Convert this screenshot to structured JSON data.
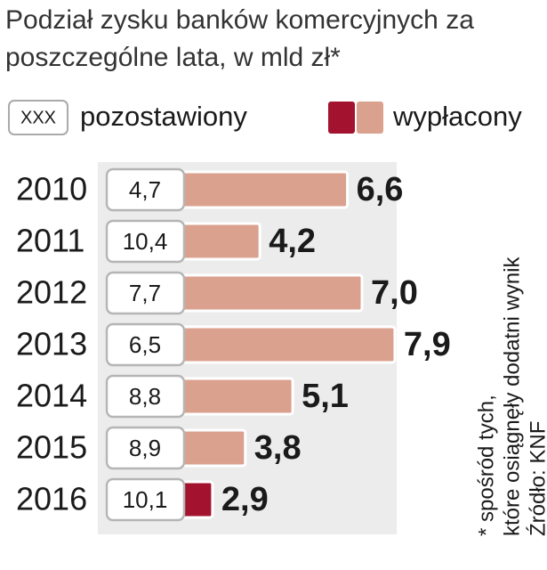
{
  "chart_data": {
    "type": "bar",
    "title": "Podział zysku banków komercyjnych za poszczególne lata, w mld zł*",
    "categories": [
      "2010",
      "2011",
      "2012",
      "2013",
      "2014",
      "2015",
      "2016"
    ],
    "legend_box_text": "XXX",
    "series": [
      {
        "name": "pozostawiony",
        "color": "#ffffff",
        "values": [
          4.7,
          10.4,
          7.7,
          6.5,
          8.8,
          8.9,
          10.1
        ],
        "value_labels": [
          "4,7",
          "10,4",
          "7,7",
          "6,5",
          "8,8",
          "8,9",
          "10,1"
        ]
      },
      {
        "name": "wypłacony",
        "color": "#dba18f",
        "colors": [
          "#dba18f",
          "#dba18f",
          "#dba18f",
          "#dba18f",
          "#dba18f",
          "#dba18f",
          "#a3132f"
        ],
        "values": [
          6.6,
          4.2,
          7.0,
          7.9,
          5.1,
          3.8,
          2.9
        ],
        "value_labels": [
          "6,6",
          "4,2",
          "7,0",
          "7,9",
          "5,1",
          "3,8",
          "2,9"
        ]
      }
    ],
    "notes": [
      "* spośród tych,",
      "które osiągnęły dodatni wynik",
      "Źródło: KNF"
    ]
  }
}
